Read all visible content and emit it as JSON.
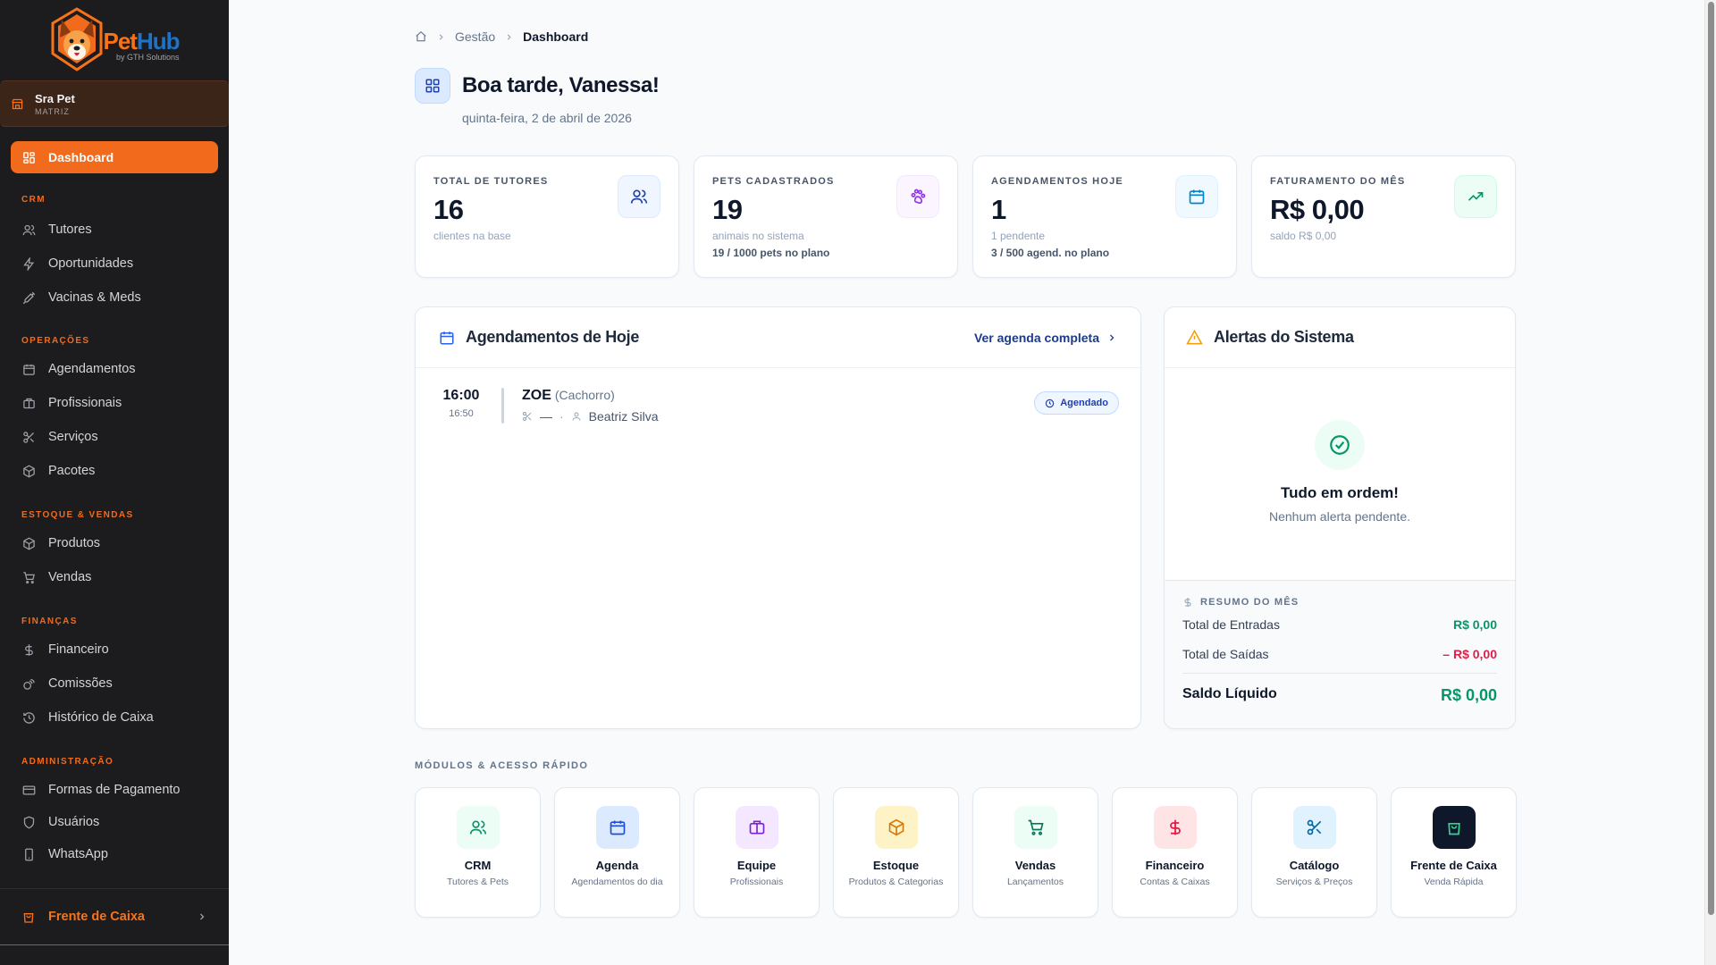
{
  "brand": {
    "name_part1": "Pet",
    "name_part2": "Hub",
    "tagline": "by GTH Solutions"
  },
  "unit": {
    "name": "Sra Pet",
    "type": "MATRIZ"
  },
  "sidebar": {
    "active": "Dashboard",
    "sections": [
      {
        "title": "CRM",
        "items": [
          "Tutores",
          "Oportunidades",
          "Vacinas & Meds"
        ]
      },
      {
        "title": "OPERAÇÕES",
        "items": [
          "Agendamentos",
          "Profissionais",
          "Serviços",
          "Pacotes"
        ]
      },
      {
        "title": "ESTOQUE & VENDAS",
        "items": [
          "Produtos",
          "Vendas"
        ]
      },
      {
        "title": "FINANÇAS",
        "items": [
          "Financeiro",
          "Comissões",
          "Histórico de Caixa"
        ]
      },
      {
        "title": "ADMINISTRAÇÃO",
        "items": [
          "Formas de Pagamento",
          "Usuários",
          "WhatsApp"
        ]
      }
    ],
    "bottom": "Frente de Caixa"
  },
  "breadcrumb": {
    "level1": "Gestão",
    "current": "Dashboard"
  },
  "header": {
    "title": "Boa tarde, Vanessa!",
    "date": "quinta-feira, 2 de abril de 2026"
  },
  "stats": [
    {
      "label": "TOTAL DE TUTORES",
      "value": "16",
      "sub": "clientes na base",
      "extra": ""
    },
    {
      "label": "PETS CADASTRADOS",
      "value": "19",
      "sub": "animais no sistema",
      "extra": "19 / 1000 pets no plano"
    },
    {
      "label": "AGENDAMENTOS HOJE",
      "value": "1",
      "sub": "1 pendente",
      "extra": "3 / 500 agend. no plano"
    },
    {
      "label": "FATURAMENTO DO MÊS",
      "value": "R$ 0,00",
      "sub": "saldo R$ 0,00",
      "extra": ""
    }
  ],
  "appointments": {
    "title": "Agendamentos de Hoje",
    "link": "Ver agenda completa",
    "items": [
      {
        "start": "16:00",
        "end": "16:50",
        "pet": "ZOE",
        "species": "(Cachorro)",
        "service": "—",
        "separator": "·",
        "professional": "Beatriz Silva",
        "status": "Agendado"
      }
    ]
  },
  "alerts": {
    "title": "Alertas do Sistema",
    "ok_title": "Tudo em ordem!",
    "ok_sub": "Nenhum alerta pendente.",
    "summary": {
      "title": "RESUMO DO MÊS",
      "in_label": "Total de Entradas",
      "in_value": "R$ 0,00",
      "out_label": "Total de Saídas",
      "out_value": "– R$ 0,00",
      "net_label": "Saldo Líquido",
      "net_value": "R$ 0,00"
    }
  },
  "modules": {
    "title": "MÓDULOS & ACESSO RÁPIDO",
    "items": [
      {
        "title": "CRM",
        "sub": "Tutores & Pets"
      },
      {
        "title": "Agenda",
        "sub": "Agendamentos do dia"
      },
      {
        "title": "Equipe",
        "sub": "Profissionais"
      },
      {
        "title": "Estoque",
        "sub": "Produtos & Categorias"
      },
      {
        "title": "Vendas",
        "sub": "Lançamentos"
      },
      {
        "title": "Financeiro",
        "sub": "Contas & Caixas"
      },
      {
        "title": "Catálogo",
        "sub": "Serviços & Preços"
      },
      {
        "title": "Frente de Caixa",
        "sub": "Venda Rápida"
      }
    ]
  },
  "colors": {
    "accent": "#f26a1b",
    "sidebar_bg": "#1c1c1e",
    "success": "#059669",
    "danger": "#e11d48",
    "link": "#1e3a8a"
  }
}
